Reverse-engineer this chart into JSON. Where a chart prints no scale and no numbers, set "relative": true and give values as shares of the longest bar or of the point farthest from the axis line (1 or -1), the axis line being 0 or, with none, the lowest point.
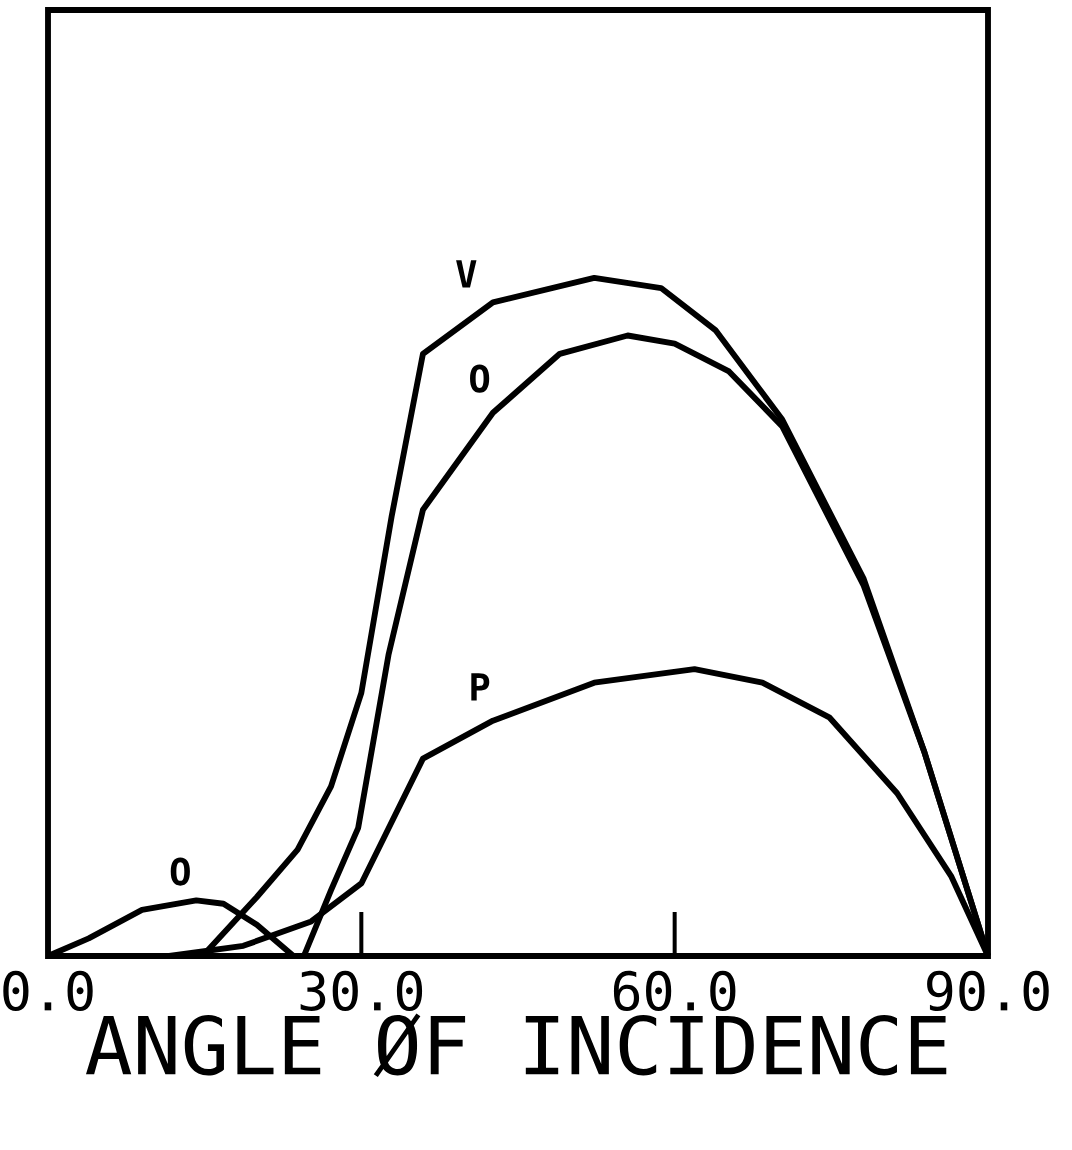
{
  "chart_data": {
    "type": "line",
    "relative": true,
    "xlabel": "ANGLE ØF INCIDENCE",
    "xlim": [
      0,
      90
    ],
    "xticks": [
      {
        "value": 0,
        "label": "0.0"
      },
      {
        "value": 30,
        "label": "30.0"
      },
      {
        "value": 60,
        "label": "60.0"
      },
      {
        "value": 90,
        "label": "90.0"
      }
    ],
    "grid": false,
    "marker": "none",
    "line_style": "solid",
    "series": [
      {
        "name": "V",
        "color": "#000000",
        "x": [
          14.8,
          20.0,
          23.9,
          27.1,
          30.0,
          32.9,
          35.9,
          42.6,
          52.3,
          58.7,
          63.9,
          70.3,
          78.1,
          83.9,
          90
        ],
        "values": [
          0,
          0.087,
          0.157,
          0.25,
          0.388,
          0.648,
          0.888,
          0.964,
          1.0,
          0.985,
          0.923,
          0.791,
          0.556,
          0.301,
          0
        ]
      },
      {
        "name": "O",
        "color": "#000000",
        "x": [
          24.5,
          27.1,
          29.7,
          32.6,
          35.9,
          42.6,
          49.0,
          55.5,
          60.0,
          65.2,
          70.3,
          78.1,
          83.9,
          90
        ],
        "values": [
          0,
          0.097,
          0.189,
          0.444,
          0.658,
          0.801,
          0.888,
          0.915,
          0.903,
          0.862,
          0.781,
          0.546,
          0.301,
          0
        ]
      },
      {
        "name": "P",
        "color": "#000000",
        "x": [
          11.6,
          18.7,
          25.2,
          30.0,
          35.9,
          42.6,
          52.3,
          61.9,
          68.4,
          74.8,
          81.3,
          86.5,
          90
        ],
        "values": [
          0,
          0.015,
          0.051,
          0.107,
          0.291,
          0.347,
          0.403,
          0.423,
          0.403,
          0.352,
          0.24,
          0.117,
          0
        ]
      },
      {
        "name": "O",
        "color": "#000000",
        "x": [
          0,
          3.9,
          9.0,
          14.2,
          16.8,
          20.0,
          23.5
        ],
        "values": [
          0,
          0.026,
          0.068,
          0.082,
          0.077,
          0.046,
          0
        ]
      }
    ]
  }
}
